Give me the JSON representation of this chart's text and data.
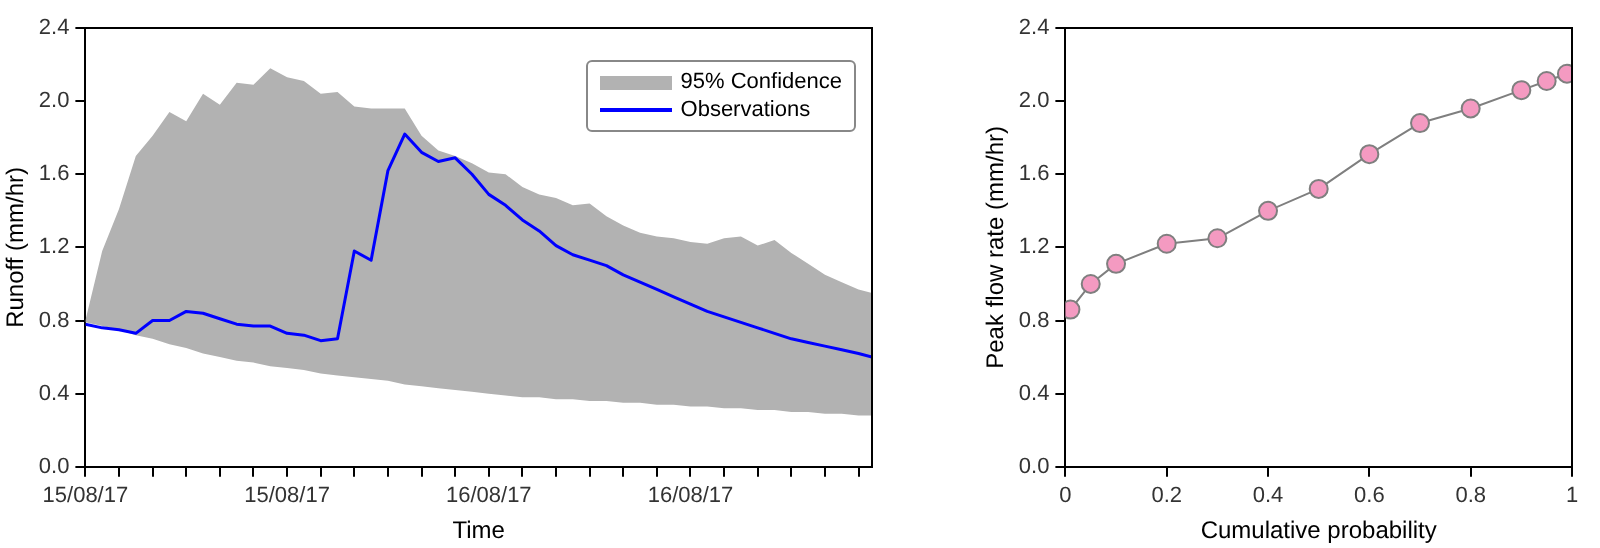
{
  "chart_data": [
    {
      "type": "line",
      "xlabel": "Time",
      "ylabel": "Runoff (mm/hr)",
      "legend": "top right",
      "x": [
        "--08-15T00:00",
        "--08-15T01:00",
        "--08-15T02:00",
        "--08-15T03:00",
        "--08-15T04:00",
        "--08-15T05:00",
        "--08-15T06:00",
        "--08-15T07:00",
        "--08-15T08:00",
        "--08-15T09:00",
        "--08-15T10:00",
        "--08-15T11:00",
        "--08-15T12:00",
        "--08-15T13:00",
        "--08-15T14:00",
        "--08-15T15:00",
        "--08-15T16:00",
        "--08-15T17:00",
        "--08-15T18:00",
        "--08-15T19:00",
        "--08-15T20:00",
        "--08-15T21:00",
        "--08-15T22:00",
        "--08-15T23:00",
        "--08-16T00:00",
        "--08-16T01:00",
        "--08-16T02:00",
        "--08-16T03:00",
        "--08-16T04:00",
        "--08-16T05:00",
        "--08-16T06:00",
        "--08-16T07:00",
        "--08-16T08:00",
        "--08-16T09:00",
        "--08-16T10:00",
        "--08-16T11:00",
        "--08-16T12:00",
        "--08-16T13:00",
        "--08-16T14:00",
        "--08-16T15:00",
        "--08-16T16:00",
        "--08-16T17:00",
        "--08-16T18:00",
        "--08-16T19:00",
        "--08-16T20:00",
        "--08-16T21:00",
        "--08-16T22:00",
        "--08-16T22:48"
      ],
      "xlim": [
        "--08-15T00:00",
        "--08-16T22:48"
      ],
      "xticks": [
        {
          "value": "--08-15T00:00",
          "label": "15/08/17"
        },
        {
          "value": "--08-15T02:00",
          "label": null
        },
        {
          "value": "--08-15T04:00",
          "label": null
        },
        {
          "value": "--08-15T06:00",
          "label": null
        },
        {
          "value": "--08-15T08:00",
          "label": null
        },
        {
          "value": "--08-15T10:00",
          "label": null
        },
        {
          "value": "--08-15T12:00",
          "label": "15/08/17"
        },
        {
          "value": "--08-15T14:00",
          "label": null
        },
        {
          "value": "--08-15T16:00",
          "label": null
        },
        {
          "value": "--08-15T18:00",
          "label": null
        },
        {
          "value": "--08-15T20:00",
          "label": null
        },
        {
          "value": "--08-15T22:00",
          "label": null
        },
        {
          "value": "--08-16T00:00",
          "label": "16/08/17"
        },
        {
          "value": "--08-16T02:00",
          "label": null
        },
        {
          "value": "--08-16T04:00",
          "label": null
        },
        {
          "value": "--08-16T06:00",
          "label": null
        },
        {
          "value": "--08-16T08:00",
          "label": null
        },
        {
          "value": "--08-16T10:00",
          "label": null
        },
        {
          "value": "--08-16T12:00",
          "label": "16/08/17"
        },
        {
          "value": "--08-16T14:00",
          "label": null
        },
        {
          "value": "--08-16T16:00",
          "label": null
        },
        {
          "value": "--08-16T18:00",
          "label": null
        },
        {
          "value": "--08-16T20:00",
          "label": null
        },
        {
          "value": "--08-16T22:00",
          "label": null
        }
      ],
      "ylim": [
        0,
        2.4
      ],
      "yticks": [
        {
          "value": 0,
          "label": "0.0"
        },
        {
          "value": 0.4,
          "label": "0.4"
        },
        {
          "value": 0.8,
          "label": "0.8"
        },
        {
          "value": 1.2,
          "label": "1.2"
        },
        {
          "value": 1.6,
          "label": "1.6"
        },
        {
          "value": 2,
          "label": "2.0"
        },
        {
          "value": 2.4,
          "label": "2.4"
        }
      ],
      "annotations": [
        "95% Confidence"
      ],
      "series": [
        {
          "name": "Observations",
          "color": "#0000ff",
          "upper": [
            0.8,
            1.18,
            1.41,
            1.7,
            1.81,
            1.94,
            1.89,
            2.04,
            1.98,
            2.1,
            2.09,
            2.18,
            2.13,
            2.11,
            2.04,
            2.05,
            1.97,
            1.96,
            1.96,
            1.96,
            1.81,
            1.73,
            1.7,
            1.66,
            1.61,
            1.6,
            1.53,
            1.49,
            1.47,
            1.43,
            1.44,
            1.37,
            1.32,
            1.28,
            1.26,
            1.25,
            1.23,
            1.22,
            1.25,
            1.26,
            1.21,
            1.24,
            1.17,
            1.11,
            1.05,
            1.01,
            0.97,
            0.95
          ],
          "lower": [
            0.79,
            0.77,
            0.75,
            0.72,
            0.7,
            0.67,
            0.65,
            0.62,
            0.6,
            0.58,
            0.57,
            0.55,
            0.54,
            0.53,
            0.51,
            0.5,
            0.49,
            0.48,
            0.47,
            0.45,
            0.44,
            0.43,
            0.42,
            0.41,
            0.4,
            0.39,
            0.38,
            0.38,
            0.37,
            0.37,
            0.36,
            0.36,
            0.35,
            0.35,
            0.34,
            0.34,
            0.33,
            0.33,
            0.32,
            0.32,
            0.31,
            0.31,
            0.3,
            0.3,
            0.29,
            0.29,
            0.28,
            0.28
          ],
          "values": [
            0.78,
            0.76,
            0.75,
            0.73,
            0.8,
            0.8,
            0.85,
            0.84,
            0.81,
            0.78,
            0.77,
            0.77,
            0.73,
            0.72,
            0.69,
            0.7,
            1.18,
            1.13,
            1.62,
            1.82,
            1.72,
            1.67,
            1.69,
            1.6,
            1.49,
            1.43,
            1.35,
            1.29,
            1.21,
            1.16,
            1.13,
            1.1,
            1.05,
            1.01,
            0.97,
            0.93,
            0.89,
            0.85,
            0.82,
            0.79,
            0.76,
            0.73,
            0.7,
            0.68,
            0.66,
            0.64,
            0.62,
            0.6
          ]
        }
      ]
    },
    {
      "type": "line",
      "xlabel": "Cumulative probability",
      "ylabel": "Peak flow rate (mm/hr)",
      "marker": "circle",
      "xlim": [
        0,
        1
      ],
      "xticks": [
        0,
        {
          "value": 0.2,
          "label": "0.2"
        },
        {
          "value": 0.4,
          "label": "0.4"
        },
        {
          "value": 0.6,
          "label": "0.6"
        },
        {
          "value": 0.8,
          "label": "0.8"
        },
        1
      ],
      "ylim": [
        0,
        2.4
      ],
      "yticks": [
        {
          "value": 0,
          "label": "0.0"
        },
        {
          "value": 0.4,
          "label": "0.4"
        },
        {
          "value": 0.8,
          "label": "0.8"
        },
        {
          "value": 1.2,
          "label": "1.2"
        },
        {
          "value": 1.6,
          "label": "1.6"
        },
        {
          "value": 2,
          "label": "2.0"
        },
        {
          "value": 2.4,
          "label": "2.4"
        }
      ],
      "series": [
        {
          "color": "#f49ac1",
          "x": [
            0.01,
            0.05,
            0.1,
            0.2,
            0.3,
            0.4,
            0.5,
            0.6,
            0.7,
            0.8,
            0.9,
            0.95,
            0.99
          ],
          "values": [
            0.86,
            1.0,
            1.11,
            1.22,
            1.25,
            1.4,
            1.52,
            1.71,
            1.88,
            1.96,
            2.06,
            2.11,
            2.15
          ]
        }
      ]
    }
  ]
}
